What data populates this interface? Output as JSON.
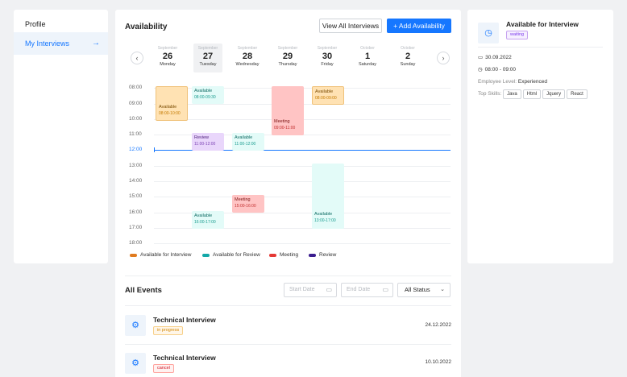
{
  "sidebar": {
    "items": [
      {
        "label": "Profile",
        "active": false
      },
      {
        "label": "My Interviews",
        "active": true
      }
    ]
  },
  "main": {
    "title": "Availability",
    "view_all_label": "View All Interviews",
    "add_label": "+ Add Availability",
    "days": [
      {
        "month": "September",
        "num": "26",
        "weekday": "Monday"
      },
      {
        "month": "September",
        "num": "27",
        "weekday": "Tuesday"
      },
      {
        "month": "September",
        "num": "28",
        "weekday": "Wednesday"
      },
      {
        "month": "September",
        "num": "29",
        "weekday": "Thursday"
      },
      {
        "month": "September",
        "num": "30",
        "weekday": "Friday"
      },
      {
        "month": "October",
        "num": "1",
        "weekday": "Saturday"
      },
      {
        "month": "October",
        "num": "2",
        "weekday": "Sunday"
      }
    ],
    "hours": [
      "08:00",
      "09:00",
      "10:00",
      "11:00",
      "12:00",
      "13:00",
      "14:00",
      "15:00",
      "16:00",
      "17:00",
      "18:00"
    ],
    "current_time": "12:00",
    "events": [
      {
        "title": "Available",
        "time": "08:00-10:00",
        "kind": "avail-int"
      },
      {
        "title": "Available",
        "time": "08:00-09:30",
        "kind": "avail-rev"
      },
      {
        "title": "Meeting",
        "time": "09:00-11:00",
        "kind": "meeting"
      },
      {
        "title": "Available",
        "time": "08:00-09:00",
        "kind": "avail-int"
      },
      {
        "title": "Review",
        "time": "11:00-12:00",
        "kind": "review"
      },
      {
        "title": "Available",
        "time": "11:00-12:00",
        "kind": "avail-rev"
      },
      {
        "title": "Meeting",
        "time": "15:00-16:00",
        "kind": "meeting"
      },
      {
        "title": "Available",
        "time": "16:00-17:00",
        "kind": "avail-rev"
      },
      {
        "title": "Available",
        "time": "13:00-17:00",
        "kind": "avail-rev"
      }
    ],
    "legend": [
      {
        "label": "Available for Interview",
        "color": "#e07b1f"
      },
      {
        "label": "Available for Review",
        "color": "#13a8a8"
      },
      {
        "label": "Meeting",
        "color": "#e53935"
      },
      {
        "label": "Review",
        "color": "#3b1d8f"
      }
    ]
  },
  "all_events": {
    "title": "All Events",
    "start_placeholder": "Start Date",
    "end_placeholder": "End Date",
    "status_value": "All Status",
    "rows": [
      {
        "title": "Technical Interview",
        "status": "in progress",
        "date": "24.12.2022"
      },
      {
        "title": "Technical Interview",
        "status": "cancel",
        "date": "10.10.2022"
      }
    ]
  },
  "detail": {
    "title": "Available for Interview",
    "status": "waiting",
    "date": "30.09.2022",
    "time": "08:00 - 09:00",
    "level_label": "Employee Level:",
    "level_value": "Experienced",
    "skills_label": "Top Skills:",
    "skills": [
      "Java",
      "Html",
      "Jquery",
      "React"
    ]
  },
  "colors": {
    "accent": "#1677ff"
  }
}
